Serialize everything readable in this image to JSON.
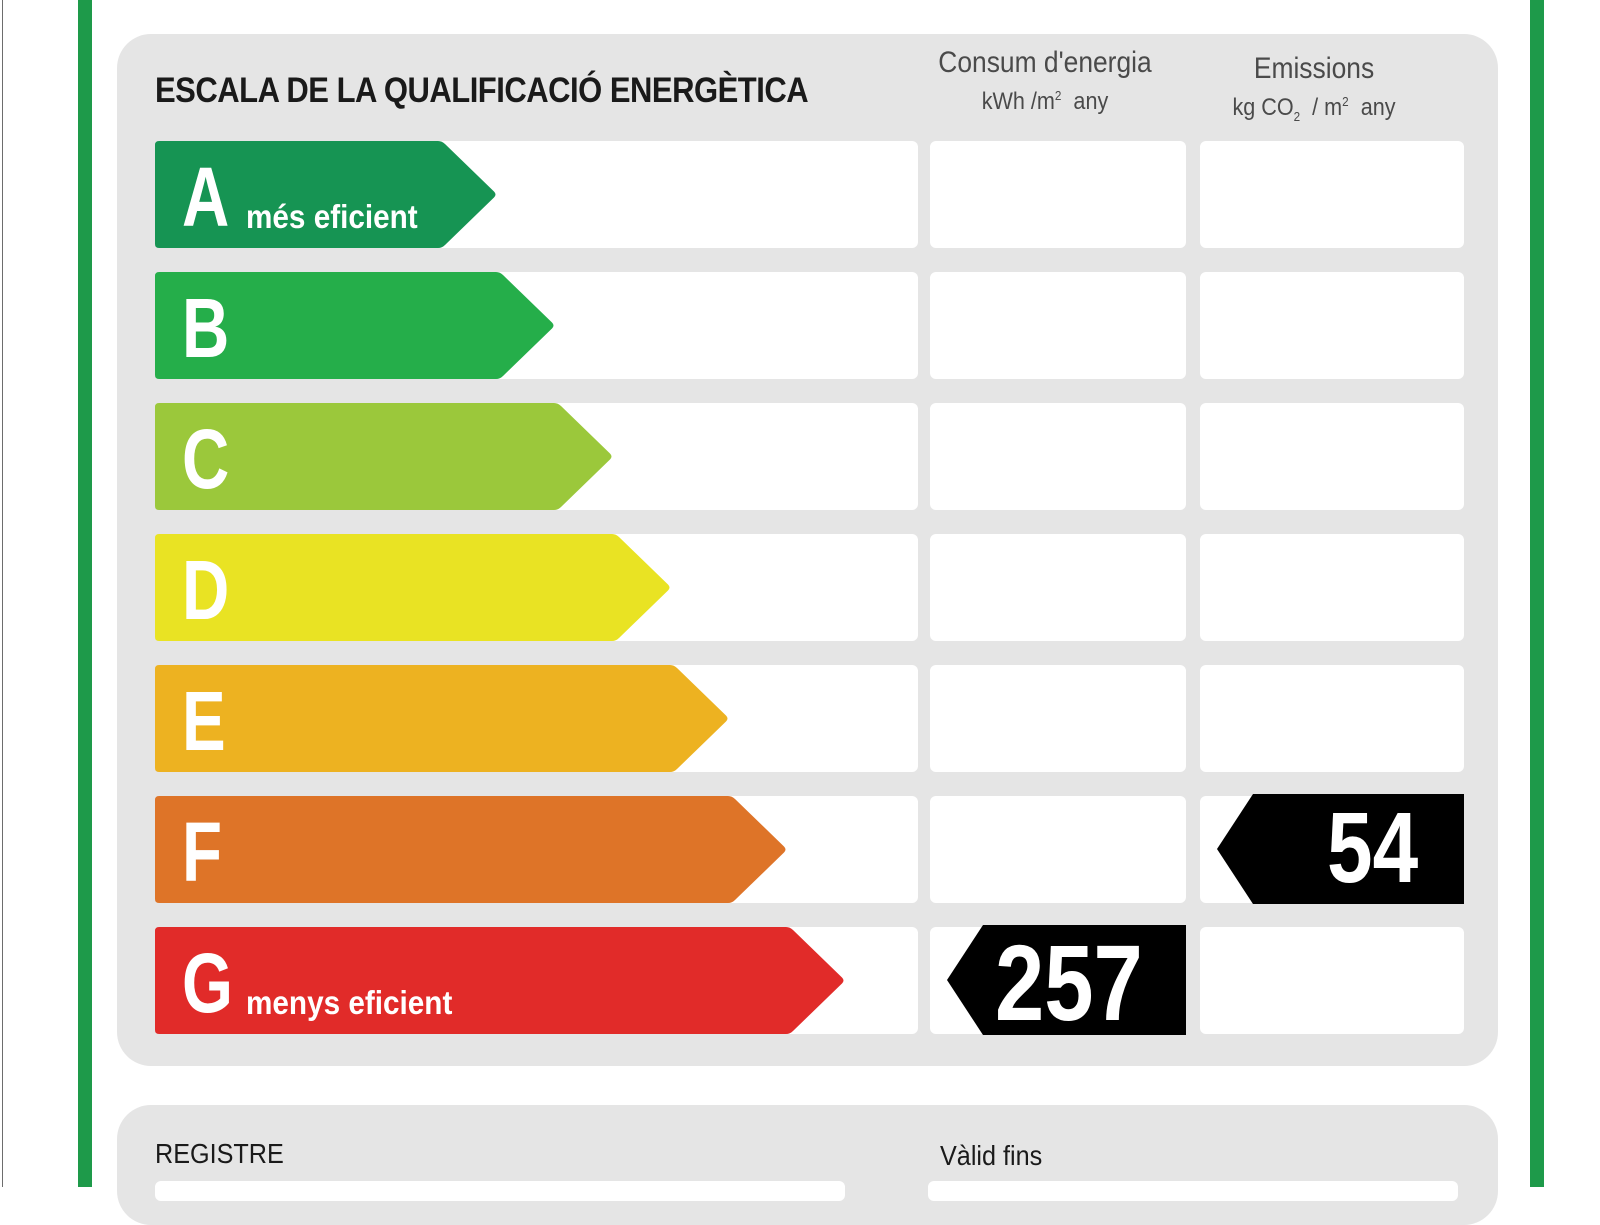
{
  "header": {
    "title": "ESCALA DE LA QUALIFICACIÓ ENERGÈTICA",
    "energy_col": {
      "line1": "Consum d'energia",
      "unit_a": "kWh /m",
      "unit_sup": "2",
      "unit_b": "any"
    },
    "emissions_col": {
      "line1": "Emissions",
      "unit_a": "kg CO",
      "unit_sub": "2",
      "unit_c": " / m",
      "unit_sup": "2",
      "unit_b": "any"
    }
  },
  "ratings": [
    {
      "letter": "A",
      "label": "més eficient",
      "color": "#169453"
    },
    {
      "letter": "B",
      "label": "",
      "color": "#25ae4a"
    },
    {
      "letter": "C",
      "label": "",
      "color": "#9bc83b"
    },
    {
      "letter": "D",
      "label": "",
      "color": "#e9e323"
    },
    {
      "letter": "E",
      "label": "",
      "color": "#edb221"
    },
    {
      "letter": "F",
      "label": "",
      "color": "#de7428"
    },
    {
      "letter": "G",
      "label": "menys eficient",
      "color": "#e12b29"
    }
  ],
  "values": {
    "energy": {
      "value": "257",
      "rating": "G"
    },
    "emissions": {
      "value": "54",
      "rating": "F"
    }
  },
  "footer": {
    "registre_label": "REGISTRE",
    "valid_label": "Vàlid fins"
  },
  "colors": {
    "frame": "#1e9a4a",
    "marker": "#000000",
    "panel": "#e5e5e5"
  }
}
